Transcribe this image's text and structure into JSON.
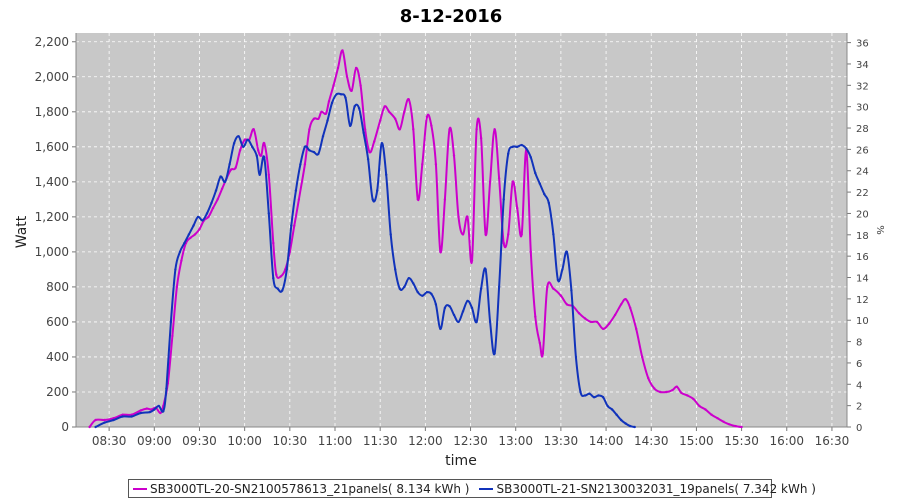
{
  "chart_data": {
    "type": "line",
    "title": "8-12-2016",
    "xlabel": "time",
    "ylabel": "Watt",
    "y2label": "%",
    "x_ticks": [
      "08:30",
      "09:00",
      "09:30",
      "10:00",
      "10:30",
      "11:00",
      "11:30",
      "12:00",
      "12:30",
      "13:00",
      "13:30",
      "14:00",
      "14:30",
      "15:00",
      "15:30",
      "16:00",
      "16:30"
    ],
    "y_ticks": [
      "0",
      "200",
      "400",
      "600",
      "800",
      "1,000",
      "1,200",
      "1,400",
      "1,600",
      "1,800",
      "2,000",
      "2,200"
    ],
    "y2_ticks": [
      "0",
      "2",
      "4",
      "6",
      "8",
      "10",
      "12",
      "14",
      "16",
      "18",
      "20",
      "22",
      "24",
      "26",
      "28",
      "30",
      "32",
      "34",
      "36"
    ],
    "xlim": [
      "08:08",
      "16:40"
    ],
    "ylim": [
      0,
      2250
    ],
    "y2lim": [
      0,
      36.9
    ],
    "grid": true,
    "legend_position": "bottom",
    "series": [
      {
        "name": "SB3000TL-20-SN2100578613_21panels( 8.134 kWh )",
        "color": "#cc00cc",
        "points": [
          [
            "08:17",
            0
          ],
          [
            "08:21",
            40
          ],
          [
            "08:27",
            40
          ],
          [
            "08:33",
            50
          ],
          [
            "08:39",
            70
          ],
          [
            "08:45",
            70
          ],
          [
            "08:51",
            95
          ],
          [
            "08:55",
            105
          ],
          [
            "08:58",
            100
          ],
          [
            "09:01",
            110
          ],
          [
            "09:04",
            80
          ],
          [
            "09:06",
            120
          ],
          [
            "09:09",
            250
          ],
          [
            "09:12",
            520
          ],
          [
            "09:15",
            800
          ],
          [
            "09:18",
            950
          ],
          [
            "09:21",
            1050
          ],
          [
            "09:24",
            1080
          ],
          [
            "09:27",
            1100
          ],
          [
            "09:30",
            1130
          ],
          [
            "09:33",
            1180
          ],
          [
            "09:36",
            1200
          ],
          [
            "09:39",
            1250
          ],
          [
            "09:42",
            1300
          ],
          [
            "09:45",
            1360
          ],
          [
            "09:48",
            1420
          ],
          [
            "09:51",
            1470
          ],
          [
            "09:54",
            1480
          ],
          [
            "09:57",
            1580
          ],
          [
            "10:00",
            1640
          ],
          [
            "10:03",
            1640
          ],
          [
            "10:06",
            1700
          ],
          [
            "10:09",
            1580
          ],
          [
            "10:11",
            1550
          ],
          [
            "10:13",
            1620
          ],
          [
            "10:16",
            1440
          ],
          [
            "10:19",
            1050
          ],
          [
            "10:21",
            870
          ],
          [
            "10:24",
            860
          ],
          [
            "10:27",
            900
          ],
          [
            "10:30",
            1000
          ],
          [
            "10:33",
            1150
          ],
          [
            "10:36",
            1300
          ],
          [
            "10:40",
            1500
          ],
          [
            "10:43",
            1700
          ],
          [
            "10:46",
            1760
          ],
          [
            "10:49",
            1760
          ],
          [
            "10:51",
            1800
          ],
          [
            "10:54",
            1790
          ],
          [
            "10:56",
            1860
          ],
          [
            "10:59",
            1950
          ],
          [
            "11:02",
            2050
          ],
          [
            "11:05",
            2150
          ],
          [
            "11:08",
            2000
          ],
          [
            "11:11",
            1920
          ],
          [
            "11:14",
            2050
          ],
          [
            "11:17",
            1950
          ],
          [
            "11:20",
            1700
          ],
          [
            "11:23",
            1570
          ],
          [
            "11:26",
            1630
          ],
          [
            "11:30",
            1750
          ],
          [
            "11:33",
            1830
          ],
          [
            "11:36",
            1800
          ],
          [
            "11:40",
            1760
          ],
          [
            "11:43",
            1700
          ],
          [
            "11:46",
            1800
          ],
          [
            "11:49",
            1870
          ],
          [
            "11:52",
            1700
          ],
          [
            "11:55",
            1300
          ],
          [
            "11:58",
            1500
          ],
          [
            "12:01",
            1770
          ],
          [
            "12:04",
            1720
          ],
          [
            "12:07",
            1500
          ],
          [
            "12:10",
            1000
          ],
          [
            "12:13",
            1300
          ],
          [
            "12:16",
            1700
          ],
          [
            "12:19",
            1550
          ],
          [
            "12:22",
            1200
          ],
          [
            "12:25",
            1100
          ],
          [
            "12:28",
            1200
          ],
          [
            "12:31",
            950
          ],
          [
            "12:34",
            1700
          ],
          [
            "12:37",
            1650
          ],
          [
            "12:40",
            1100
          ],
          [
            "12:43",
            1400
          ],
          [
            "12:46",
            1700
          ],
          [
            "12:49",
            1420
          ],
          [
            "12:52",
            1050
          ],
          [
            "12:55",
            1100
          ],
          [
            "12:58",
            1400
          ],
          [
            "13:01",
            1250
          ],
          [
            "13:04",
            1100
          ],
          [
            "13:07",
            1580
          ],
          [
            "13:10",
            1000
          ],
          [
            "13:13",
            630
          ],
          [
            "13:16",
            480
          ],
          [
            "13:18",
            420
          ],
          [
            "13:21",
            800
          ],
          [
            "13:25",
            790
          ],
          [
            "13:30",
            750
          ],
          [
            "13:34",
            700
          ],
          [
            "13:38",
            690
          ],
          [
            "13:42",
            650
          ],
          [
            "13:46",
            620
          ],
          [
            "13:50",
            600
          ],
          [
            "13:54",
            600
          ],
          [
            "13:58",
            560
          ],
          [
            "14:02",
            590
          ],
          [
            "14:06",
            640
          ],
          [
            "14:10",
            700
          ],
          [
            "14:13",
            730
          ],
          [
            "14:16",
            680
          ],
          [
            "14:20",
            560
          ],
          [
            "14:24",
            400
          ],
          [
            "14:28",
            280
          ],
          [
            "14:32",
            220
          ],
          [
            "14:36",
            200
          ],
          [
            "14:40",
            200
          ],
          [
            "14:44",
            210
          ],
          [
            "14:47",
            230
          ],
          [
            "14:50",
            195
          ],
          [
            "14:54",
            180
          ],
          [
            "14:58",
            160
          ],
          [
            "15:02",
            120
          ],
          [
            "15:06",
            100
          ],
          [
            "15:10",
            70
          ],
          [
            "15:14",
            50
          ],
          [
            "15:18",
            30
          ],
          [
            "15:22",
            15
          ],
          [
            "15:26",
            5
          ],
          [
            "15:30",
            0
          ]
        ]
      },
      {
        "name": "SB3000TL-21-SN2130032031_19panels( 7.342 kWh )",
        "color": "#1133bb",
        "points": [
          [
            "08:21",
            0
          ],
          [
            "08:27",
            25
          ],
          [
            "08:33",
            40
          ],
          [
            "08:39",
            60
          ],
          [
            "08:45",
            60
          ],
          [
            "08:51",
            80
          ],
          [
            "08:57",
            85
          ],
          [
            "09:00",
            100
          ],
          [
            "09:03",
            120
          ],
          [
            "09:06",
            90
          ],
          [
            "09:08",
            220
          ],
          [
            "09:11",
            600
          ],
          [
            "09:14",
            900
          ],
          [
            "09:17",
            1000
          ],
          [
            "09:20",
            1050
          ],
          [
            "09:23",
            1100
          ],
          [
            "09:26",
            1150
          ],
          [
            "09:29",
            1200
          ],
          [
            "09:32",
            1180
          ],
          [
            "09:35",
            1220
          ],
          [
            "09:38",
            1280
          ],
          [
            "09:41",
            1350
          ],
          [
            "09:44",
            1430
          ],
          [
            "09:47",
            1400
          ],
          [
            "09:50",
            1500
          ],
          [
            "09:53",
            1620
          ],
          [
            "09:56",
            1660
          ],
          [
            "09:59",
            1600
          ],
          [
            "10:02",
            1640
          ],
          [
            "10:05",
            1600
          ],
          [
            "10:08",
            1550
          ],
          [
            "10:10",
            1440
          ],
          [
            "10:13",
            1540
          ],
          [
            "10:16",
            1220
          ],
          [
            "10:19",
            850
          ],
          [
            "10:22",
            790
          ],
          [
            "10:25",
            780
          ],
          [
            "10:28",
            900
          ],
          [
            "10:31",
            1150
          ],
          [
            "10:34",
            1350
          ],
          [
            "10:37",
            1500
          ],
          [
            "10:40",
            1600
          ],
          [
            "10:43",
            1580
          ],
          [
            "10:46",
            1570
          ],
          [
            "10:49",
            1560
          ],
          [
            "10:52",
            1660
          ],
          [
            "10:55",
            1750
          ],
          [
            "10:58",
            1850
          ],
          [
            "11:01",
            1900
          ],
          [
            "11:04",
            1900
          ],
          [
            "11:07",
            1880
          ],
          [
            "11:10",
            1720
          ],
          [
            "11:13",
            1830
          ],
          [
            "11:16",
            1820
          ],
          [
            "11:19",
            1680
          ],
          [
            "11:22",
            1530
          ],
          [
            "11:25",
            1300
          ],
          [
            "11:28",
            1350
          ],
          [
            "11:31",
            1620
          ],
          [
            "11:34",
            1440
          ],
          [
            "11:37",
            1100
          ],
          [
            "11:40",
            900
          ],
          [
            "11:43",
            790
          ],
          [
            "11:46",
            800
          ],
          [
            "11:49",
            850
          ],
          [
            "11:52",
            820
          ],
          [
            "11:55",
            770
          ],
          [
            "11:58",
            750
          ],
          [
            "12:01",
            770
          ],
          [
            "12:04",
            760
          ],
          [
            "12:07",
            700
          ],
          [
            "12:10",
            560
          ],
          [
            "12:13",
            680
          ],
          [
            "12:16",
            690
          ],
          [
            "12:19",
            640
          ],
          [
            "12:22",
            600
          ],
          [
            "12:25",
            660
          ],
          [
            "12:28",
            720
          ],
          [
            "12:31",
            680
          ],
          [
            "12:34",
            600
          ],
          [
            "12:37",
            790
          ],
          [
            "12:40",
            900
          ],
          [
            "12:43",
            600
          ],
          [
            "12:46",
            420
          ],
          [
            "12:49",
            800
          ],
          [
            "12:52",
            1300
          ],
          [
            "12:55",
            1560
          ],
          [
            "12:58",
            1600
          ],
          [
            "13:01",
            1600
          ],
          [
            "13:04",
            1610
          ],
          [
            "13:07",
            1590
          ],
          [
            "13:10",
            1540
          ],
          [
            "13:13",
            1450
          ],
          [
            "13:16",
            1390
          ],
          [
            "13:19",
            1330
          ],
          [
            "13:22",
            1280
          ],
          [
            "13:25",
            1100
          ],
          [
            "13:28",
            840
          ],
          [
            "13:31",
            900
          ],
          [
            "13:34",
            1000
          ],
          [
            "13:37",
            780
          ],
          [
            "13:40",
            400
          ],
          [
            "13:43",
            200
          ],
          [
            "13:46",
            180
          ],
          [
            "13:49",
            190
          ],
          [
            "13:52",
            170
          ],
          [
            "13:55",
            180
          ],
          [
            "13:58",
            170
          ],
          [
            "14:01",
            120
          ],
          [
            "14:04",
            100
          ],
          [
            "14:07",
            70
          ],
          [
            "14:10",
            40
          ],
          [
            "14:13",
            20
          ],
          [
            "14:16",
            5
          ],
          [
            "14:19",
            0
          ]
        ]
      }
    ]
  }
}
